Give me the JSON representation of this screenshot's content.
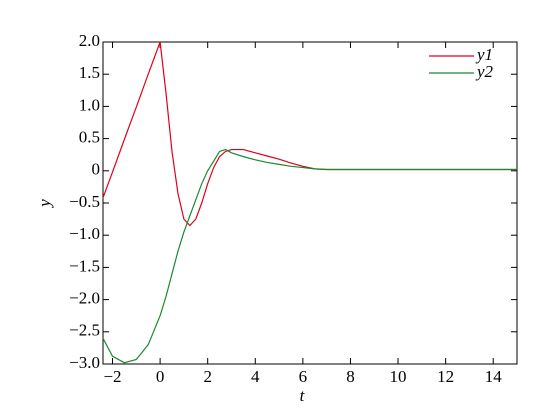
{
  "chart_data": {
    "type": "line",
    "xlabel": "t",
    "ylabel": "y",
    "x": [
      -2.4,
      -2,
      -1.5,
      -1,
      -0.5,
      0,
      0.25,
      0.5,
      0.75,
      1,
      1.25,
      1.5,
      1.75,
      2,
      2.25,
      2.5,
      2.75,
      3,
      3.5,
      4,
      4.5,
      5,
      5.5,
      6,
      6.5,
      7,
      8,
      10,
      12,
      14,
      15
    ],
    "series": [
      {
        "name": "y1",
        "color": "#e0001b",
        "values": [
          -0.42,
          -0.02,
          0.49,
          0.99,
          1.5,
          2.0,
          1.2,
          0.3,
          -0.35,
          -0.75,
          -0.85,
          -0.75,
          -0.5,
          -0.2,
          0.05,
          0.22,
          0.3,
          0.33,
          0.33,
          0.28,
          0.23,
          0.18,
          0.12,
          0.07,
          0.03,
          0.02,
          0.02,
          0.02,
          0.02,
          0.02,
          0.02
        ]
      },
      {
        "name": "y2",
        "color": "#1a8a2e",
        "values": [
          -2.6,
          -2.88,
          -2.98,
          -2.93,
          -2.7,
          -2.25,
          -1.95,
          -1.6,
          -1.25,
          -0.95,
          -0.7,
          -0.45,
          -0.2,
          0.0,
          0.15,
          0.3,
          0.33,
          0.28,
          0.22,
          0.17,
          0.13,
          0.1,
          0.07,
          0.05,
          0.03,
          0.02,
          0.02,
          0.02,
          0.02,
          0.02,
          0.02
        ]
      }
    ],
    "xlim": [
      -2.4,
      15
    ],
    "ylim": [
      -3,
      2
    ],
    "xticks": [
      {
        "value": -2,
        "label": "−2"
      },
      0,
      2,
      4,
      6,
      8,
      10,
      12,
      14
    ],
    "yticks": [
      {
        "value": 2,
        "label": "2.0"
      },
      {
        "value": 1.5,
        "label": "1.5"
      },
      {
        "value": 1,
        "label": "1.0"
      },
      {
        "value": 0.5,
        "label": "0.5"
      },
      0,
      {
        "value": -0.5,
        "label": "−0.5"
      },
      {
        "value": -1,
        "label": "−1.0"
      },
      {
        "value": -1.5,
        "label": "−1.5"
      },
      {
        "value": -2,
        "label": "−2.0"
      },
      {
        "value": -2.5,
        "label": "−2.5"
      },
      {
        "value": -3,
        "label": "−3.0"
      }
    ],
    "legend": "upper right",
    "grid": false
  }
}
